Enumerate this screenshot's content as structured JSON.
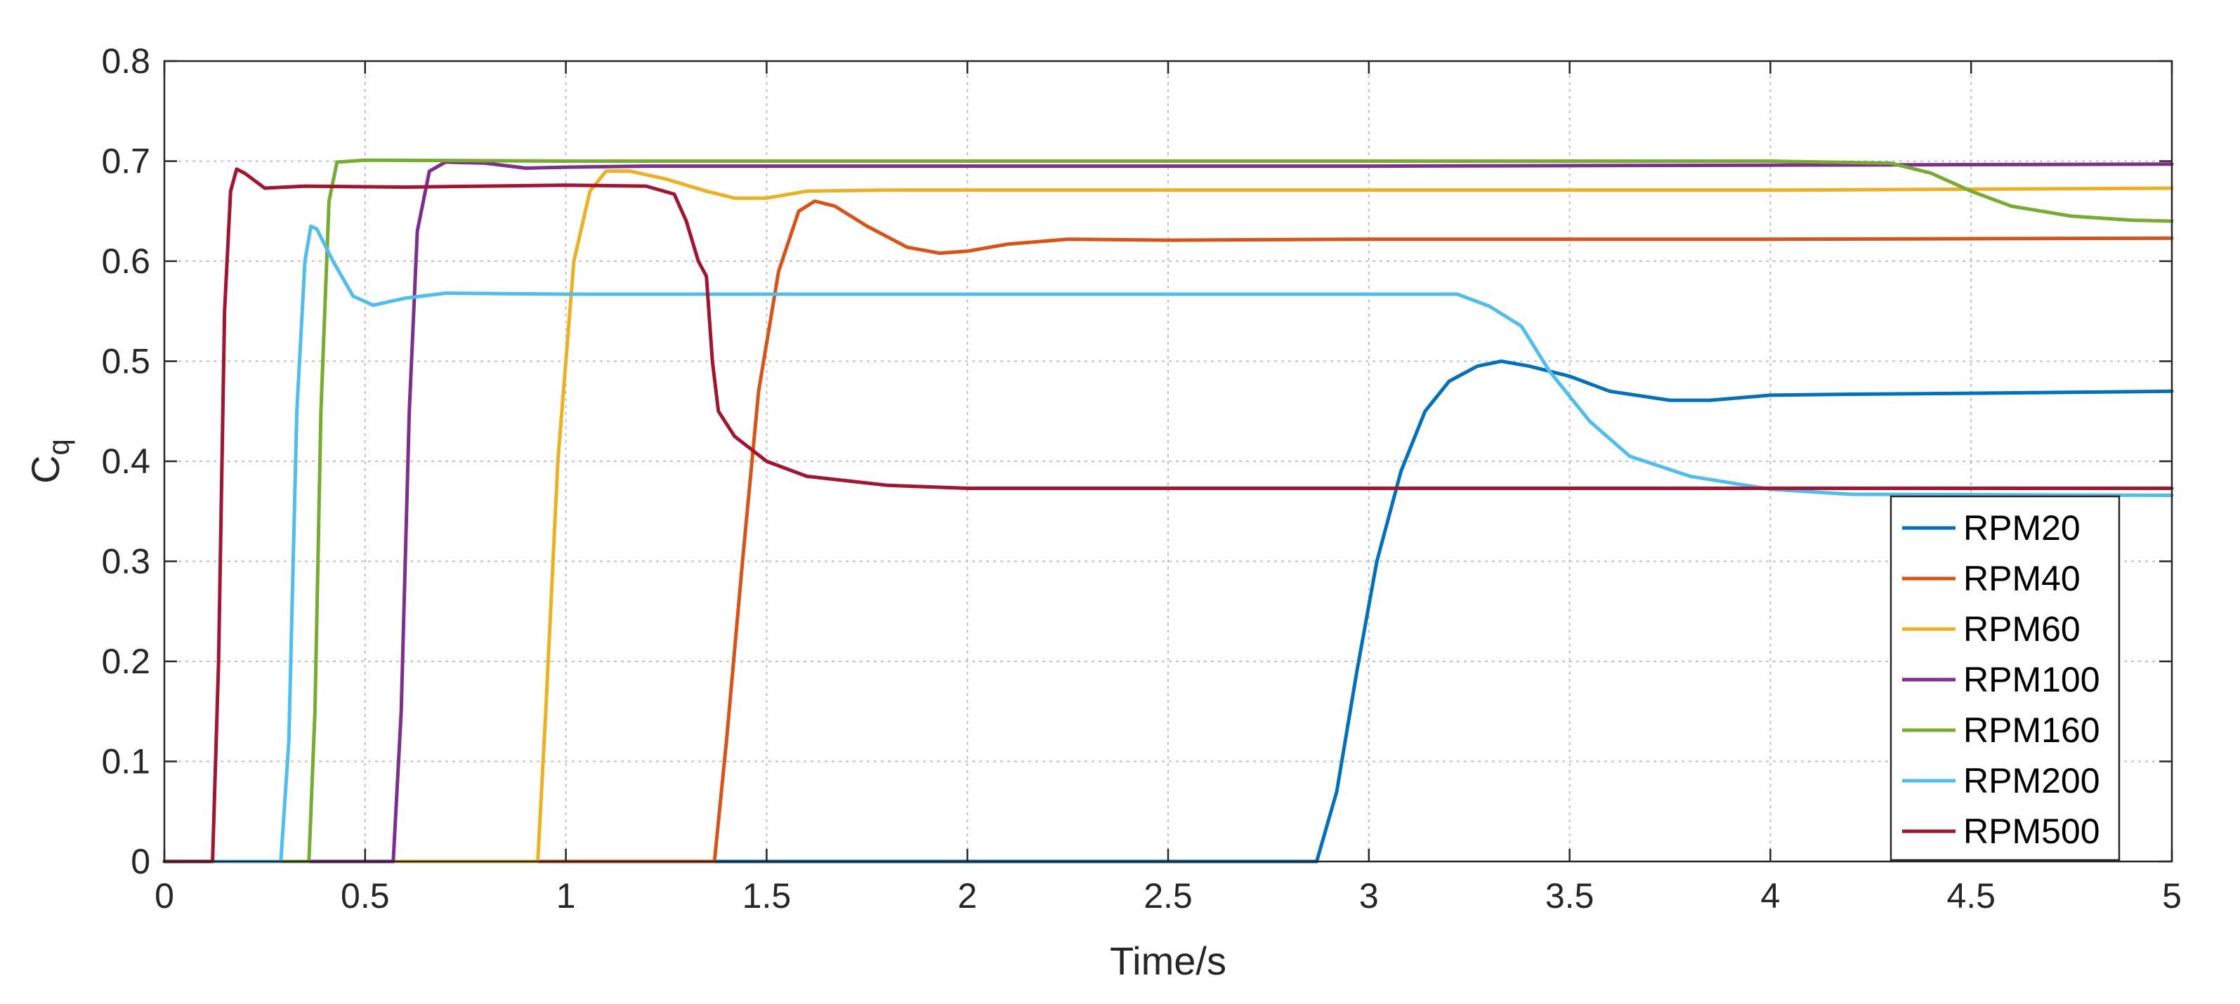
{
  "chart_data": {
    "type": "line",
    "title": "",
    "xlabel": "Time/s",
    "ylabel": "C",
    "ylabel_subscript": "q",
    "xlim": [
      0,
      5
    ],
    "ylim": [
      0,
      0.8
    ],
    "xticks": [
      0,
      0.5,
      1,
      1.5,
      2,
      2.5,
      3,
      3.5,
      4,
      4.5,
      5
    ],
    "xtick_labels": [
      "0",
      "0.5",
      "1",
      "1.5",
      "2",
      "2.5",
      "3",
      "3.5",
      "4",
      "4.5",
      "5"
    ],
    "yticks": [
      0,
      0.1,
      0.2,
      0.3,
      0.4,
      0.5,
      0.6,
      0.7,
      0.8
    ],
    "ytick_labels": [
      "0",
      "0.1",
      "0.2",
      "0.3",
      "0.4",
      "0.5",
      "0.6",
      "0.7",
      "0.8"
    ],
    "grid": true,
    "legend_position": "bottom-right",
    "series": [
      {
        "name": "RPM20",
        "color": "#0072BD",
        "points": [
          [
            0,
            0
          ],
          [
            2.87,
            0
          ],
          [
            2.92,
            0.07
          ],
          [
            2.97,
            0.19
          ],
          [
            3.02,
            0.3
          ],
          [
            3.08,
            0.39
          ],
          [
            3.14,
            0.45
          ],
          [
            3.2,
            0.48
          ],
          [
            3.27,
            0.495
          ],
          [
            3.33,
            0.5
          ],
          [
            3.4,
            0.495
          ],
          [
            3.5,
            0.485
          ],
          [
            3.6,
            0.47
          ],
          [
            3.75,
            0.461
          ],
          [
            3.85,
            0.461
          ],
          [
            4.0,
            0.466
          ],
          [
            4.2,
            0.467
          ],
          [
            4.5,
            0.468
          ],
          [
            5.0,
            0.47
          ]
        ]
      },
      {
        "name": "RPM40",
        "color": "#D95319",
        "points": [
          [
            0,
            0
          ],
          [
            1.37,
            0
          ],
          [
            1.4,
            0.12
          ],
          [
            1.44,
            0.3
          ],
          [
            1.48,
            0.47
          ],
          [
            1.53,
            0.59
          ],
          [
            1.58,
            0.65
          ],
          [
            1.62,
            0.66
          ],
          [
            1.67,
            0.655
          ],
          [
            1.75,
            0.635
          ],
          [
            1.85,
            0.614
          ],
          [
            1.93,
            0.608
          ],
          [
            2.0,
            0.61
          ],
          [
            2.1,
            0.617
          ],
          [
            2.25,
            0.622
          ],
          [
            2.5,
            0.621
          ],
          [
            3.0,
            0.622
          ],
          [
            4.0,
            0.622
          ],
          [
            5.0,
            0.623
          ]
        ]
      },
      {
        "name": "RPM60",
        "color": "#EDB120",
        "points": [
          [
            0,
            0
          ],
          [
            0.93,
            0
          ],
          [
            0.95,
            0.15
          ],
          [
            0.98,
            0.4
          ],
          [
            1.02,
            0.6
          ],
          [
            1.06,
            0.67
          ],
          [
            1.1,
            0.69
          ],
          [
            1.16,
            0.69
          ],
          [
            1.25,
            0.682
          ],
          [
            1.35,
            0.67
          ],
          [
            1.42,
            0.663
          ],
          [
            1.5,
            0.663
          ],
          [
            1.6,
            0.67
          ],
          [
            1.8,
            0.671
          ],
          [
            2.0,
            0.671
          ],
          [
            3.0,
            0.671
          ],
          [
            4.0,
            0.671
          ],
          [
            5.0,
            0.673
          ]
        ]
      },
      {
        "name": "RPM100",
        "color": "#7E2F8E",
        "points": [
          [
            0,
            0
          ],
          [
            0.57,
            0
          ],
          [
            0.59,
            0.15
          ],
          [
            0.61,
            0.45
          ],
          [
            0.63,
            0.63
          ],
          [
            0.66,
            0.69
          ],
          [
            0.7,
            0.699
          ],
          [
            0.8,
            0.698
          ],
          [
            0.9,
            0.693
          ],
          [
            1.0,
            0.694
          ],
          [
            1.2,
            0.695
          ],
          [
            2.0,
            0.695
          ],
          [
            3.0,
            0.695
          ],
          [
            4.0,
            0.696
          ],
          [
            5.0,
            0.697
          ]
        ]
      },
      {
        "name": "RPM160",
        "color": "#77AC30",
        "points": [
          [
            0,
            0
          ],
          [
            0.36,
            0
          ],
          [
            0.375,
            0.15
          ],
          [
            0.39,
            0.45
          ],
          [
            0.41,
            0.66
          ],
          [
            0.43,
            0.699
          ],
          [
            0.5,
            0.701
          ],
          [
            1.0,
            0.7
          ],
          [
            2.0,
            0.7
          ],
          [
            3.0,
            0.7
          ],
          [
            4.0,
            0.7
          ],
          [
            4.3,
            0.698
          ],
          [
            4.4,
            0.688
          ],
          [
            4.5,
            0.67
          ],
          [
            4.6,
            0.655
          ],
          [
            4.75,
            0.645
          ],
          [
            4.9,
            0.641
          ],
          [
            5.0,
            0.64
          ]
        ]
      },
      {
        "name": "RPM200",
        "color": "#4DBEEE",
        "points": [
          [
            0,
            0
          ],
          [
            0.29,
            0
          ],
          [
            0.31,
            0.12
          ],
          [
            0.33,
            0.45
          ],
          [
            0.35,
            0.6
          ],
          [
            0.365,
            0.635
          ],
          [
            0.38,
            0.632
          ],
          [
            0.42,
            0.6
          ],
          [
            0.47,
            0.565
          ],
          [
            0.52,
            0.556
          ],
          [
            0.6,
            0.563
          ],
          [
            0.7,
            0.568
          ],
          [
            1.0,
            0.567
          ],
          [
            2.0,
            0.567
          ],
          [
            3.0,
            0.567
          ],
          [
            3.22,
            0.567
          ],
          [
            3.3,
            0.555
          ],
          [
            3.38,
            0.535
          ],
          [
            3.45,
            0.49
          ],
          [
            3.55,
            0.44
          ],
          [
            3.65,
            0.405
          ],
          [
            3.8,
            0.385
          ],
          [
            4.0,
            0.372
          ],
          [
            4.2,
            0.367
          ],
          [
            5.0,
            0.366
          ]
        ]
      },
      {
        "name": "RPM500",
        "color": "#A2142F",
        "points": [
          [
            0,
            0
          ],
          [
            0.12,
            0
          ],
          [
            0.135,
            0.2
          ],
          [
            0.15,
            0.55
          ],
          [
            0.165,
            0.67
          ],
          [
            0.18,
            0.692
          ],
          [
            0.2,
            0.688
          ],
          [
            0.25,
            0.673
          ],
          [
            0.35,
            0.675
          ],
          [
            0.6,
            0.674
          ],
          [
            1.0,
            0.676
          ],
          [
            1.2,
            0.675
          ],
          [
            1.27,
            0.667
          ],
          [
            1.3,
            0.64
          ],
          [
            1.33,
            0.6
          ],
          [
            1.35,
            0.585
          ],
          [
            1.365,
            0.5
          ],
          [
            1.38,
            0.45
          ],
          [
            1.42,
            0.425
          ],
          [
            1.5,
            0.4
          ],
          [
            1.6,
            0.385
          ],
          [
            1.8,
            0.376
          ],
          [
            2.0,
            0.373
          ],
          [
            3.0,
            0.373
          ],
          [
            4.0,
            0.373
          ],
          [
            5.0,
            0.373
          ]
        ]
      }
    ]
  }
}
